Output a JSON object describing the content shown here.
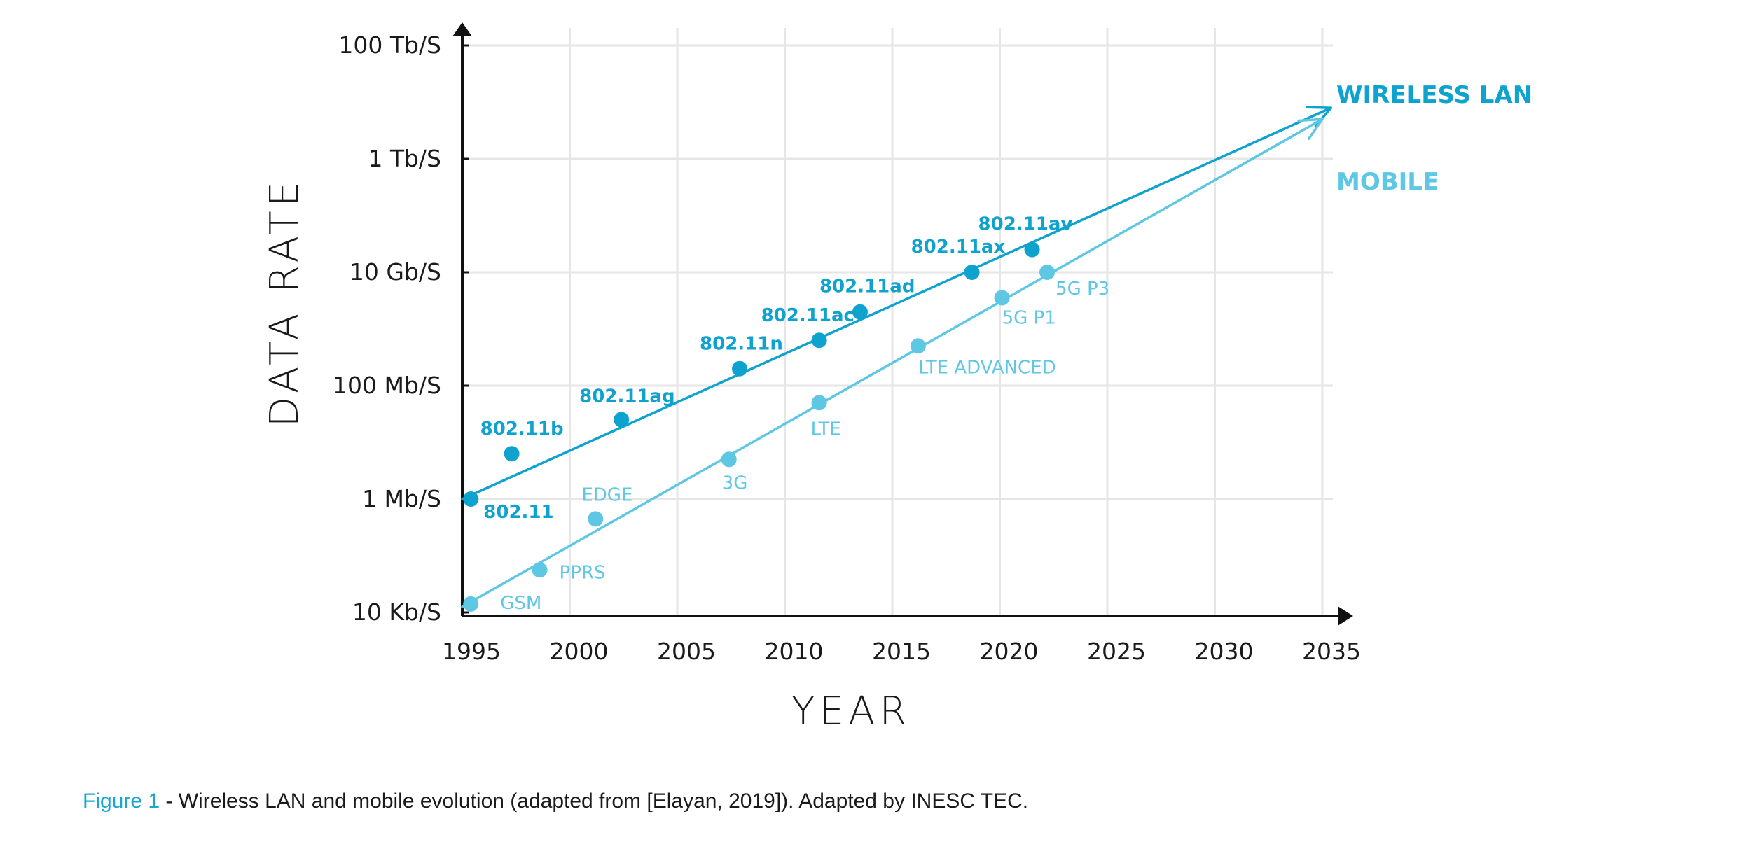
{
  "chart_data": {
    "type": "line",
    "xlabel": "YEAR",
    "ylabel": "DATA RATE",
    "x_ticks": [
      1995,
      2000,
      2005,
      2010,
      2015,
      2020,
      2025,
      2030,
      2035
    ],
    "xlim": [
      1995,
      2035
    ],
    "y_scale": "log",
    "y_ticks": [
      "10 Kb/S",
      "1 Mb/S",
      "100 Mb/S",
      "10 Gb/S",
      "1 Tb/S",
      "100 Tb/S"
    ],
    "ylim_log_bps": [
      4,
      14
    ],
    "grid": true,
    "legend_position": "right",
    "colors": {
      "wireless_lan": "#0ea2cf",
      "mobile": "#5ec7e4",
      "axis": "#111111",
      "grid": "#e6e6e6"
    },
    "series": [
      {
        "name": "WIRELESS LAN",
        "trend": {
          "from": [
            1995,
            6.0
          ],
          "to": [
            2035.4,
            12.9
          ]
        },
        "points": [
          {
            "label": "802.11",
            "x": 1995.4,
            "log10_bps": 6.0
          },
          {
            "label": "802.11b",
            "x": 1997.3,
            "log10_bps": 6.8
          },
          {
            "label": "802.11ag",
            "x": 2002.4,
            "log10_bps": 7.4
          },
          {
            "label": "802.11n",
            "x": 2007.9,
            "log10_bps": 8.3
          },
          {
            "label": "802.11ac",
            "x": 2011.6,
            "log10_bps": 8.8
          },
          {
            "label": "802.11ad",
            "x": 2013.5,
            "log10_bps": 9.3
          },
          {
            "label": "802.11ax",
            "x": 2018.7,
            "log10_bps": 10.0
          },
          {
            "label": "802.11av",
            "x": 2021.5,
            "log10_bps": 10.4
          }
        ]
      },
      {
        "name": "MOBILE",
        "trend": {
          "from": [
            1995,
            4.1
          ],
          "to": [
            2035.0,
            12.7
          ]
        },
        "points": [
          {
            "label": "GSM",
            "x": 1995.4,
            "log10_bps": 4.15
          },
          {
            "label": "PPRS",
            "x": 1998.6,
            "log10_bps": 4.75
          },
          {
            "label": "EDGE",
            "x": 2001.2,
            "log10_bps": 5.65
          },
          {
            "label": "3G",
            "x": 2007.4,
            "log10_bps": 6.7
          },
          {
            "label": "LTE",
            "x": 2011.6,
            "log10_bps": 7.7
          },
          {
            "label": "LTE ADVANCED",
            "x": 2016.2,
            "log10_bps": 8.7
          },
          {
            "label": "5G P1",
            "x": 2020.1,
            "log10_bps": 9.55
          },
          {
            "label": "5G P3",
            "x": 2022.2,
            "log10_bps": 10.0
          }
        ]
      }
    ]
  },
  "caption": {
    "figure_label": "Figure 1",
    "text": " - Wireless LAN and mobile evolution (adapted from [Elayan, 2019]). Adapted by INESC TEC."
  }
}
